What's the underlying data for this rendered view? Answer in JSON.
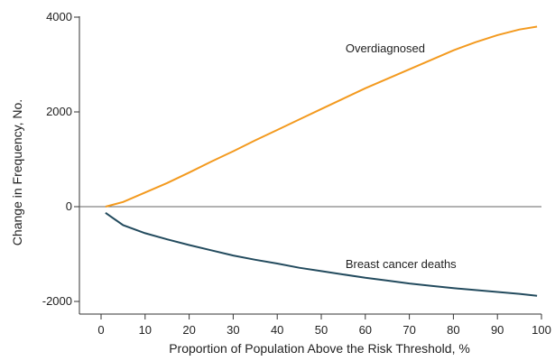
{
  "chart_data": {
    "type": "line",
    "title": "",
    "xlabel": "Proportion of Population Above the Risk Threshold, %",
    "ylabel": "Change in Frequency, No.",
    "xlim": [
      0,
      100
    ],
    "ylim": [
      -2000,
      4000
    ],
    "x_ticks": [
      0,
      10,
      20,
      30,
      40,
      50,
      60,
      70,
      80,
      90,
      100
    ],
    "y_ticks": [
      -2000,
      0,
      2000,
      4000
    ],
    "grid": false,
    "legend": "none",
    "series": [
      {
        "name": "Overdiagnosed",
        "color": "#f39a1f",
        "x": [
          1,
          5,
          10,
          15,
          20,
          25,
          30,
          35,
          40,
          45,
          50,
          55,
          60,
          65,
          70,
          75,
          80,
          85,
          90,
          95,
          99
        ],
        "values": [
          0,
          100,
          300,
          500,
          720,
          950,
          1170,
          1400,
          1620,
          1840,
          2060,
          2280,
          2500,
          2700,
          2900,
          3100,
          3300,
          3470,
          3620,
          3740,
          3800
        ]
      },
      {
        "name": "Breast cancer deaths",
        "color": "#234b5e",
        "x": [
          1,
          5,
          10,
          15,
          20,
          25,
          30,
          35,
          40,
          45,
          50,
          55,
          60,
          65,
          70,
          75,
          80,
          85,
          90,
          95,
          99
        ],
        "values": [
          -130,
          -390,
          -560,
          -690,
          -810,
          -920,
          -1030,
          -1120,
          -1200,
          -1290,
          -1360,
          -1430,
          -1500,
          -1560,
          -1620,
          -1670,
          -1720,
          -1760,
          -1800,
          -1840,
          -1880
        ]
      }
    ]
  }
}
